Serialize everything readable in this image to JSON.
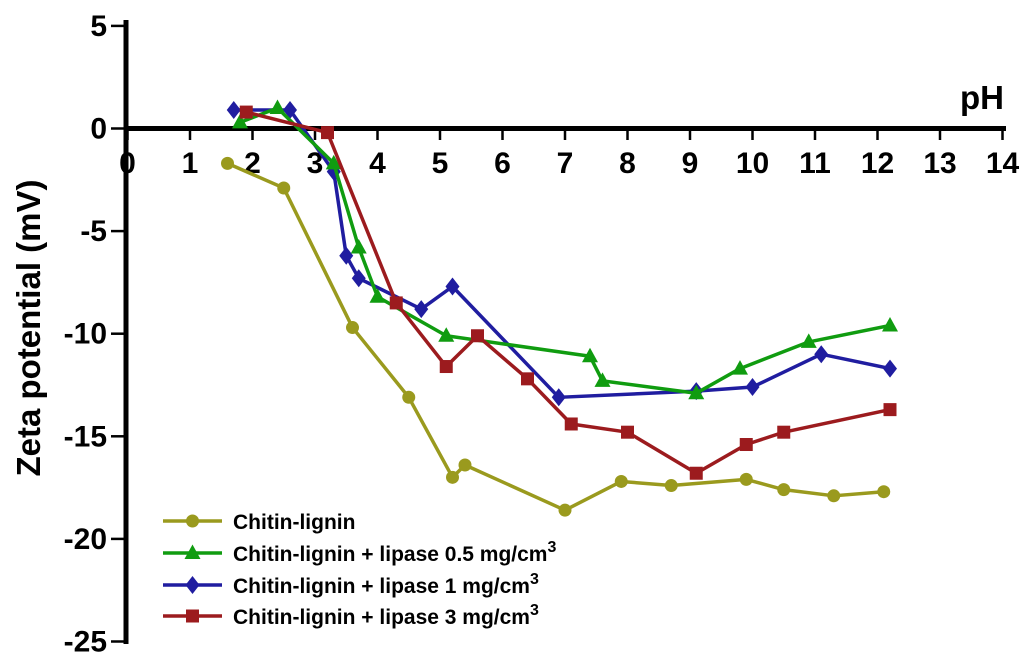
{
  "figure": {
    "background": "#ffffff",
    "text_color": "#000000",
    "axis_color": "#000000"
  },
  "chart_data": {
    "type": "line",
    "title": "",
    "xlabel": "pH",
    "ylabel": "Zeta potential (mV)",
    "xlim": [
      0,
      14
    ],
    "ylim": [
      -25,
      5
    ],
    "xticks": [
      0,
      1,
      2,
      3,
      4,
      5,
      6,
      7,
      8,
      9,
      10,
      11,
      12,
      13,
      14
    ],
    "yticks": [
      5,
      0,
      -5,
      -10,
      -15,
      -20,
      -25
    ],
    "grid": false,
    "legend_position": "inside-bottom-left",
    "series": [
      {
        "name": "Chitin-lignin",
        "name_sup": "",
        "color": "#9a9a1e",
        "marker": "circle",
        "points": [
          [
            1.6,
            -1.7
          ],
          [
            2.5,
            -2.9
          ],
          [
            3.6,
            -9.7
          ],
          [
            4.5,
            -13.1
          ],
          [
            5.2,
            -17.0
          ],
          [
            5.4,
            -16.4
          ],
          [
            7.0,
            -18.6
          ],
          [
            7.9,
            -17.2
          ],
          [
            8.7,
            -17.4
          ],
          [
            9.9,
            -17.1
          ],
          [
            10.5,
            -17.6
          ],
          [
            11.3,
            -17.9
          ],
          [
            12.1,
            -17.7
          ]
        ]
      },
      {
        "name": "Chitin-lignin + lipase 0.5 mg/cm",
        "name_sup": "3",
        "color": "#109c10",
        "marker": "triangle",
        "points": [
          [
            1.8,
            0.3
          ],
          [
            2.4,
            1.0
          ],
          [
            3.3,
            -1.7
          ],
          [
            3.7,
            -5.8
          ],
          [
            4.0,
            -8.2
          ],
          [
            5.1,
            -10.1
          ],
          [
            7.4,
            -11.1
          ],
          [
            7.6,
            -12.3
          ],
          [
            9.1,
            -12.9
          ],
          [
            9.8,
            -11.7
          ],
          [
            10.9,
            -10.4
          ],
          [
            12.2,
            -9.6
          ]
        ]
      },
      {
        "name": "Chitin-lignin + lipase 1 mg/cm",
        "name_sup": "3",
        "color": "#201da0",
        "marker": "diamond",
        "points": [
          [
            1.7,
            0.9
          ],
          [
            2.6,
            0.9
          ],
          [
            3.3,
            -2.1
          ],
          [
            3.5,
            -6.2
          ],
          [
            3.7,
            -7.3
          ],
          [
            4.7,
            -8.8
          ],
          [
            5.2,
            -7.7
          ],
          [
            6.9,
            -13.1
          ],
          [
            9.1,
            -12.8
          ],
          [
            10.0,
            -12.6
          ],
          [
            11.1,
            -11.0
          ],
          [
            12.2,
            -11.7
          ]
        ]
      },
      {
        "name": "Chitin-lignin + lipase 3 mg/cm",
        "name_sup": "3",
        "color": "#9c1b1e",
        "marker": "square",
        "points": [
          [
            1.9,
            0.8
          ],
          [
            3.2,
            -0.2
          ],
          [
            4.3,
            -8.5
          ],
          [
            5.1,
            -11.6
          ],
          [
            5.6,
            -10.1
          ],
          [
            6.4,
            -12.2
          ],
          [
            7.1,
            -14.4
          ],
          [
            8.0,
            -14.8
          ],
          [
            9.1,
            -16.8
          ],
          [
            9.9,
            -15.4
          ],
          [
            10.5,
            -14.8
          ],
          [
            12.2,
            -13.7
          ]
        ]
      }
    ]
  }
}
